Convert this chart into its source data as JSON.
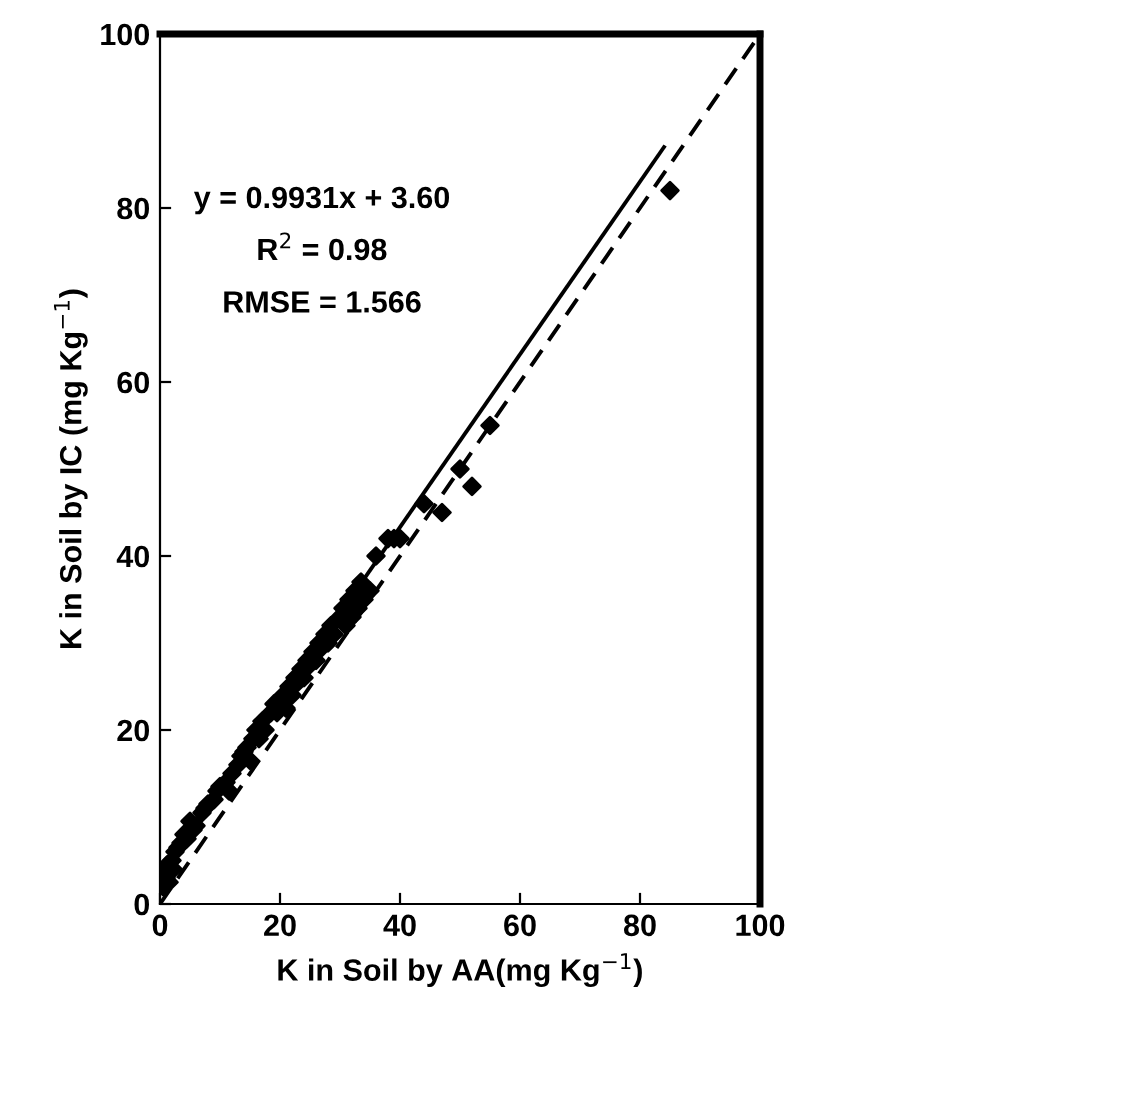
{
  "chart_data": {
    "type": "scatter",
    "xlabel": "K in Soil by AA(mg Kg$^{−1}$)",
    "ylabel": "K in Soil by IC (mg Kg$^{−1}$)",
    "xlim": [
      0,
      100
    ],
    "ylim": [
      0,
      100
    ],
    "xticks": [
      0,
      20,
      40,
      60,
      80,
      100
    ],
    "yticks": [
      0,
      20,
      40,
      60,
      80,
      100
    ],
    "grid": false,
    "legend": false,
    "annotations": [
      "y = 0.9931x + 3.60",
      "R$^{2}$ = 0.98",
      "RMSE = 1.566"
    ],
    "series": [
      {
        "marker": "diamond",
        "color": "#000000",
        "x": [
          0.5,
          1,
          1.2,
          1.5,
          2,
          2.2,
          2.5,
          3,
          3.5,
          4,
          4.5,
          5,
          5.5,
          6,
          7,
          7.5,
          8,
          9,
          9.5,
          10,
          11,
          11.5,
          12,
          13,
          13.5,
          14,
          14.5,
          15,
          15.5,
          16,
          16.5,
          17,
          17.5,
          18.5,
          19,
          19.5,
          20.5,
          21,
          21.5,
          22,
          22.5,
          23,
          23.5,
          24,
          24.5,
          25,
          25.5,
          26,
          26.5,
          27,
          27.5,
          28,
          28.5,
          29,
          30,
          30.5,
          31,
          31.5,
          32,
          32.5,
          33,
          33.5,
          34,
          35,
          36,
          38,
          39,
          40,
          44,
          47,
          50,
          52,
          55,
          85
        ],
        "values": [
          2,
          3,
          4.5,
          2.5,
          5,
          4,
          6,
          6.5,
          7,
          8,
          7.5,
          9.5,
          8.5,
          9,
          10.5,
          11,
          11.5,
          12,
          13,
          13.5,
          14,
          13,
          15,
          16,
          17,
          17.5,
          18,
          16.5,
          19,
          20,
          19,
          21,
          20,
          22,
          23,
          22,
          24,
          22.5,
          25,
          24,
          26,
          25.5,
          27,
          26,
          28,
          27.5,
          29,
          28,
          30,
          29.5,
          31,
          30,
          32,
          31,
          33,
          34,
          32,
          35,
          33,
          36,
          34,
          37,
          35,
          36,
          40,
          42,
          42,
          42,
          46,
          45,
          50,
          48,
          55,
          82
        ]
      },
      {
        "type": "line",
        "line_style": "solid",
        "color": "#000000",
        "x": [
          0,
          84
        ],
        "values": [
          3.6,
          87
        ]
      },
      {
        "type": "line",
        "line_style": "dashed",
        "color": "#000000",
        "x": [
          0,
          100
        ],
        "values": [
          0,
          100
        ]
      }
    ]
  }
}
